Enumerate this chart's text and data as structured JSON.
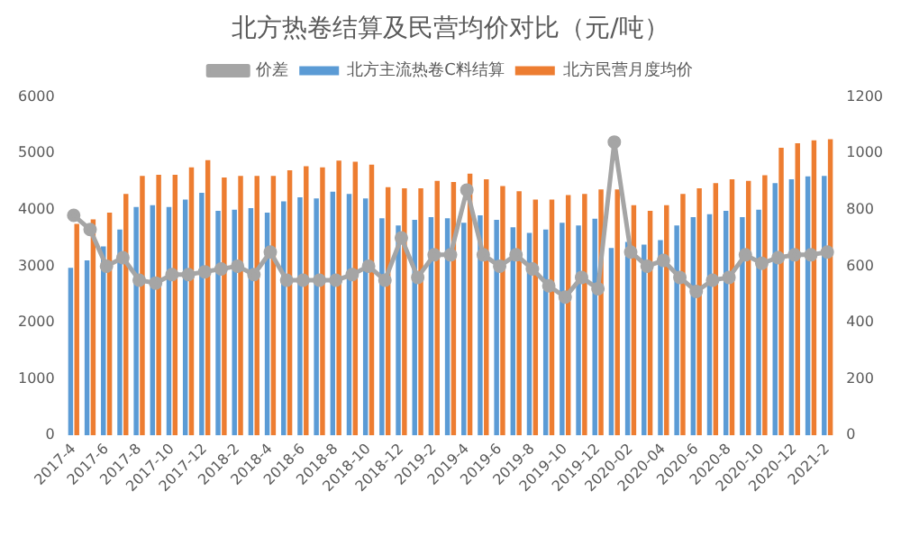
{
  "chart_data": {
    "type": "bar",
    "title": "北方热卷结算及民营均价对比（元/吨）",
    "categories": [
      "2017-4",
      null,
      "2017-6",
      null,
      "2017-8",
      null,
      "2017-10",
      null,
      "2017-12",
      null,
      "2018-2",
      null,
      "2018-4",
      null,
      "2018-6",
      null,
      "2018-8",
      null,
      "2018-10",
      null,
      "2018-12",
      null,
      "2019-2",
      null,
      "2019-4",
      null,
      "2019-6",
      null,
      "2019-8",
      null,
      "2019-10",
      null,
      "2019-12",
      null,
      "2020-02",
      null,
      "2020-04",
      null,
      "2020-6",
      null,
      "2020-8",
      null,
      "2020-10",
      null,
      "2020-12",
      null,
      "2021-2"
    ],
    "series": [
      {
        "name": "北方主流热卷C料结算",
        "color": "#5b9bd5",
        "values": [
          2970,
          3100,
          3350,
          3650,
          4050,
          4080,
          4050,
          4180,
          4300,
          3980,
          4000,
          4030,
          3950,
          4150,
          4220,
          4200,
          4320,
          4280,
          4200,
          3850,
          3720,
          3820,
          3870,
          3850,
          3770,
          3900,
          3820,
          3690,
          3590,
          3650,
          3770,
          3720,
          3840,
          3320,
          3430,
          3380,
          3460,
          3720,
          3870,
          3920,
          3980,
          3870,
          4000,
          4470,
          4540,
          4590,
          4600
        ]
      },
      {
        "name": "北方民营月度均价",
        "color": "#ed7d31",
        "values": [
          3750,
          3830,
          3950,
          4280,
          4600,
          4620,
          4620,
          4750,
          4880,
          4570,
          4600,
          4600,
          4600,
          4700,
          4770,
          4750,
          4870,
          4850,
          4800,
          4400,
          4380,
          4380,
          4510,
          4490,
          4640,
          4540,
          4420,
          4330,
          4180,
          4180,
          4260,
          4280,
          4360,
          4360,
          4080,
          3980,
          4080,
          4280,
          4380,
          4470,
          4540,
          4510,
          4610,
          5100,
          5180,
          5230,
          5250
        ]
      },
      {
        "name": "价差",
        "type": "line",
        "axis": "y2",
        "color": "#a5a5a5",
        "values": [
          780,
          730,
          600,
          630,
          550,
          540,
          570,
          570,
          580,
          590,
          600,
          570,
          650,
          550,
          550,
          550,
          550,
          570,
          600,
          550,
          700,
          560,
          640,
          640,
          870,
          640,
          600,
          640,
          590,
          530,
          490,
          560,
          520,
          1040,
          650,
          600,
          620,
          560,
          510,
          550,
          560,
          640,
          610,
          630,
          640,
          640,
          650
        ]
      }
    ],
    "ylim": [
      0,
      6000
    ],
    "yticks": [
      0,
      1000,
      2000,
      3000,
      4000,
      5000,
      6000
    ],
    "y2lim": [
      0,
      1200
    ],
    "y2ticks": [
      0,
      200,
      400,
      600,
      800,
      1000,
      1200
    ],
    "legend": "top",
    "grid": false,
    "marker": "circle"
  }
}
